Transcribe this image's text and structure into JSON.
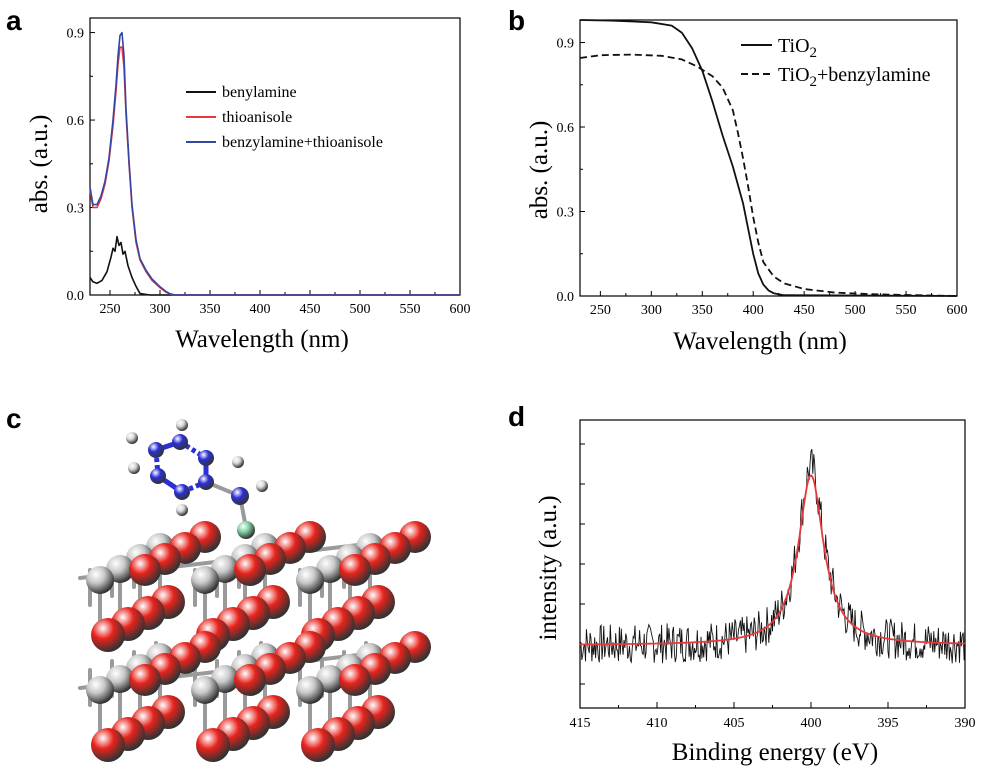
{
  "panels": {
    "a": "a",
    "b": "b",
    "c": "c",
    "d": "d"
  },
  "colors": {
    "black": "#111111",
    "red": "#e8383b",
    "blue": "#3346a6",
    "titanium": "#c8c8c8",
    "oxygen": "#e8231c",
    "carbon": "#2b2fd6",
    "hydrogen": "#d8d8d8",
    "nitrogen": "#7fd0a0"
  },
  "chart_data": [
    {
      "id": "a",
      "type": "line",
      "xlabel": "Wavelength (nm)",
      "ylabel": "abs. (a.u.)",
      "xlim": [
        230,
        600
      ],
      "ylim": [
        0,
        0.95
      ],
      "xticks": [
        250,
        300,
        350,
        400,
        450,
        500,
        550,
        600
      ],
      "yticks": [
        0.0,
        0.3,
        0.6,
        0.9
      ],
      "ytick_labels": [
        "0.0",
        "0.3",
        "0.6",
        "0.9"
      ],
      "legend_position": "right",
      "series": [
        {
          "name": "benylamine",
          "color": "#111111",
          "x": [
            230,
            233,
            237,
            242,
            247,
            251,
            253,
            255,
            257,
            259,
            261,
            263,
            265,
            268,
            272,
            276,
            280,
            290,
            600
          ],
          "y": [
            0.06,
            0.045,
            0.04,
            0.05,
            0.08,
            0.13,
            0.16,
            0.15,
            0.2,
            0.17,
            0.18,
            0.14,
            0.15,
            0.1,
            0.06,
            0.03,
            0.005,
            0.0,
            0.0
          ]
        },
        {
          "name": "thioanisole",
          "color": "#e8383b",
          "x": [
            230,
            233,
            237,
            241,
            245,
            249,
            253,
            256,
            258,
            260,
            262,
            264,
            266,
            269,
            272,
            276,
            280,
            286,
            292,
            300,
            306,
            310,
            315,
            600
          ],
          "y": [
            0.36,
            0.3,
            0.3,
            0.33,
            0.38,
            0.46,
            0.58,
            0.7,
            0.79,
            0.85,
            0.85,
            0.78,
            0.62,
            0.45,
            0.3,
            0.18,
            0.12,
            0.08,
            0.05,
            0.025,
            0.01,
            0.003,
            0.0,
            0.0
          ]
        },
        {
          "name": "benzylamine+thioanisole",
          "color": "#3346a6",
          "x": [
            230,
            233,
            237,
            241,
            245,
            249,
            253,
            256,
            258,
            260,
            262,
            264,
            266,
            269,
            272,
            276,
            280,
            286,
            292,
            300,
            306,
            310,
            315,
            600
          ],
          "y": [
            0.37,
            0.31,
            0.31,
            0.34,
            0.39,
            0.47,
            0.6,
            0.72,
            0.82,
            0.89,
            0.9,
            0.82,
            0.64,
            0.46,
            0.31,
            0.19,
            0.125,
            0.085,
            0.055,
            0.028,
            0.012,
            0.004,
            0.0,
            0.0
          ]
        }
      ]
    },
    {
      "id": "b",
      "type": "line",
      "xlabel": "Wavelength (nm)",
      "ylabel": "abs. (a.u.)",
      "xlim": [
        230,
        600
      ],
      "ylim": [
        0,
        0.98
      ],
      "xticks": [
        250,
        300,
        350,
        400,
        450,
        500,
        550,
        600
      ],
      "yticks": [
        0.0,
        0.3,
        0.6,
        0.9
      ],
      "ytick_labels": [
        "0.0",
        "0.3",
        "0.6",
        "0.9"
      ],
      "legend_position": "top-right",
      "series": [
        {
          "name": "TiO2",
          "legend_base": "TiO",
          "legend_sub": "2",
          "style": "solid",
          "x": [
            230,
            260,
            300,
            320,
            330,
            340,
            350,
            360,
            370,
            380,
            390,
            395,
            400,
            405,
            410,
            415,
            420,
            430,
            600
          ],
          "y": [
            0.98,
            0.978,
            0.972,
            0.96,
            0.935,
            0.88,
            0.8,
            0.69,
            0.57,
            0.46,
            0.33,
            0.24,
            0.15,
            0.08,
            0.04,
            0.02,
            0.01,
            0.003,
            0.0
          ]
        },
        {
          "name": "TiO2+benzylamine",
          "legend_base": "TiO",
          "legend_sub": "2",
          "legend_suffix": "+benzylamine",
          "style": "dashed",
          "x": [
            230,
            250,
            280,
            310,
            330,
            345,
            360,
            370,
            380,
            385,
            390,
            395,
            400,
            405,
            410,
            420,
            430,
            450,
            480,
            520,
            560,
            600
          ],
          "y": [
            0.845,
            0.855,
            0.857,
            0.853,
            0.84,
            0.815,
            0.78,
            0.74,
            0.66,
            0.58,
            0.49,
            0.39,
            0.28,
            0.19,
            0.12,
            0.07,
            0.045,
            0.025,
            0.012,
            0.006,
            0.003,
            0.0
          ]
        }
      ]
    },
    {
      "id": "d",
      "type": "line",
      "xlabel": "Binding energy (eV)",
      "ylabel": "intensity (a.u.)",
      "xlim": [
        415,
        390
      ],
      "xreversed": true,
      "ylim": [
        0,
        1
      ],
      "xticks": [
        415,
        410,
        405,
        400,
        395,
        390
      ],
      "ytick_count": 7,
      "series": [
        {
          "name": "",
          "color": "#111111",
          "style": "noisy-raw",
          "peak_center": 400,
          "peak_height": 0.62,
          "baseline": 0.218,
          "noise_amplitude": 0.07
        },
        {
          "name": "",
          "color": "#e8383b",
          "style": "fit",
          "peak_center": 400,
          "peak_height": 0.59,
          "fwhm": 2.0,
          "baseline": 0.218
        }
      ]
    }
  ],
  "structure": {
    "id": "c",
    "type": "molecular-model"
  }
}
